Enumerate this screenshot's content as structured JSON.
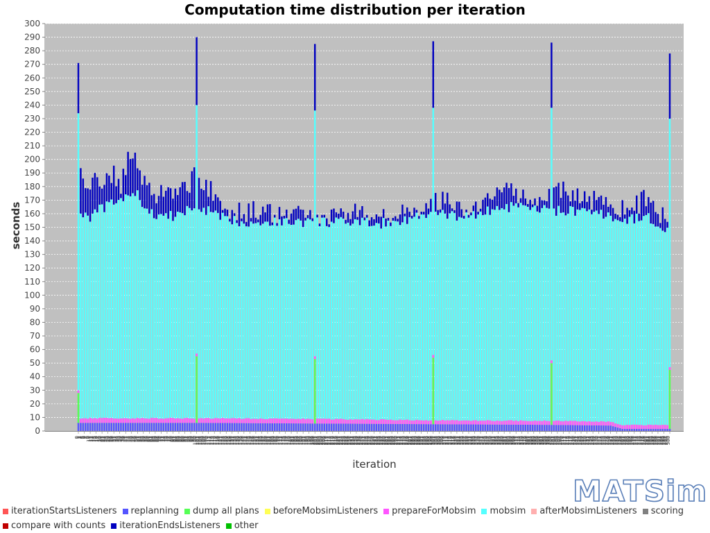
{
  "chart_data": {
    "type": "bar",
    "stacked": true,
    "title": "Computation time distribution per iteration",
    "xlabel": "iteration",
    "ylabel": "seconds",
    "ylim": [
      0,
      300
    ],
    "y_ticks": [
      0,
      10,
      20,
      30,
      40,
      50,
      60,
      70,
      80,
      90,
      100,
      110,
      120,
      130,
      140,
      150,
      160,
      170,
      180,
      190,
      200,
      210,
      220,
      230,
      240,
      250,
      260,
      270,
      280,
      290,
      300
    ],
    "x_range": [
      0,
      500
    ],
    "grid": true,
    "legend_position": "bottom",
    "plot_background": "#c0c0c0",
    "series": [
      {
        "name": "iterationStartsListeners",
        "color": "#ff5555"
      },
      {
        "name": "replanning",
        "color": "#5555ff"
      },
      {
        "name": "dump all plans",
        "color": "#55ff55"
      },
      {
        "name": "beforeMobsimListeners",
        "color": "#ffff55"
      },
      {
        "name": "prepareForMobsim",
        "color": "#ff55ff"
      },
      {
        "name": "mobsim",
        "color": "#55ffff"
      },
      {
        "name": "afterMobsimListeners",
        "color": "#ffafaf"
      },
      {
        "name": "scoring",
        "color": "#808080"
      },
      {
        "name": "compare with counts",
        "color": "#c00000"
      },
      {
        "name": "iterationEndsListeners",
        "color": "#0000c0"
      },
      {
        "name": "other",
        "color": "#00c000"
      }
    ],
    "dump_iterations": [
      0,
      100,
      200,
      300,
      400,
      500
    ],
    "dump_all_plans_values": [
      28,
      55,
      53,
      54,
      50,
      45
    ],
    "total_at_dump_iterations": [
      271,
      290,
      285,
      287,
      286,
      278
    ],
    "mobsim_at_dump_iterations": [
      234,
      240,
      236,
      238,
      238,
      230
    ],
    "total_profile": [
      [
        0,
        202
      ],
      [
        5,
        180
      ],
      [
        10,
        182
      ],
      [
        15,
        185
      ],
      [
        20,
        184
      ],
      [
        25,
        190
      ],
      [
        30,
        188
      ],
      [
        35,
        178
      ],
      [
        40,
        195
      ],
      [
        45,
        202
      ],
      [
        50,
        196
      ],
      [
        55,
        182
      ],
      [
        60,
        175
      ],
      [
        70,
        176
      ],
      [
        80,
        177
      ],
      [
        90,
        178
      ],
      [
        100,
        190
      ],
      [
        105,
        174
      ],
      [
        110,
        180
      ],
      [
        120,
        168
      ],
      [
        130,
        162
      ],
      [
        140,
        160
      ],
      [
        150,
        162
      ],
      [
        160,
        160
      ],
      [
        170,
        158
      ],
      [
        180,
        160
      ],
      [
        190,
        158
      ],
      [
        200,
        160
      ],
      [
        210,
        158
      ],
      [
        220,
        160
      ],
      [
        230,
        160
      ],
      [
        240,
        162
      ],
      [
        250,
        158
      ],
      [
        260,
        160
      ],
      [
        270,
        158
      ],
      [
        280,
        160
      ],
      [
        290,
        156
      ],
      [
        300,
        168
      ],
      [
        310,
        170
      ],
      [
        320,
        162
      ],
      [
        330,
        158
      ],
      [
        340,
        165
      ],
      [
        350,
        175
      ],
      [
        360,
        178
      ],
      [
        370,
        175
      ],
      [
        380,
        172
      ],
      [
        390,
        170
      ],
      [
        400,
        174
      ],
      [
        410,
        178
      ],
      [
        420,
        172
      ],
      [
        430,
        168
      ],
      [
        440,
        172
      ],
      [
        450,
        170
      ],
      [
        460,
        162
      ],
      [
        470,
        165
      ],
      [
        480,
        172
      ],
      [
        490,
        160
      ],
      [
        500,
        158
      ]
    ],
    "mobsim_profile": [
      [
        0,
        160
      ],
      [
        10,
        158
      ],
      [
        20,
        164
      ],
      [
        30,
        168
      ],
      [
        40,
        172
      ],
      [
        50,
        174
      ],
      [
        60,
        160
      ],
      [
        80,
        158
      ],
      [
        100,
        165
      ],
      [
        110,
        162
      ],
      [
        120,
        157
      ],
      [
        140,
        154
      ],
      [
        160,
        154
      ],
      [
        200,
        154
      ],
      [
        260,
        153
      ],
      [
        300,
        160
      ],
      [
        320,
        158
      ],
      [
        340,
        160
      ],
      [
        360,
        165
      ],
      [
        380,
        164
      ],
      [
        400,
        162
      ],
      [
        420,
        162
      ],
      [
        440,
        160
      ],
      [
        460,
        155
      ],
      [
        480,
        158
      ],
      [
        500,
        147
      ]
    ],
    "overhead_profile": [
      [
        0,
        9
      ],
      [
        100,
        9
      ],
      [
        200,
        8.5
      ],
      [
        300,
        7.5
      ],
      [
        400,
        7
      ],
      [
        450,
        6.5
      ],
      [
        460,
        4
      ],
      [
        500,
        4
      ]
    ],
    "replanning_profile": [
      [
        0,
        6
      ],
      [
        100,
        6
      ],
      [
        200,
        5.5
      ],
      [
        300,
        5
      ],
      [
        400,
        4.5
      ],
      [
        450,
        4
      ],
      [
        460,
        1.5
      ],
      [
        500,
        1.5
      ]
    ]
  },
  "logo_text": "MATSim"
}
